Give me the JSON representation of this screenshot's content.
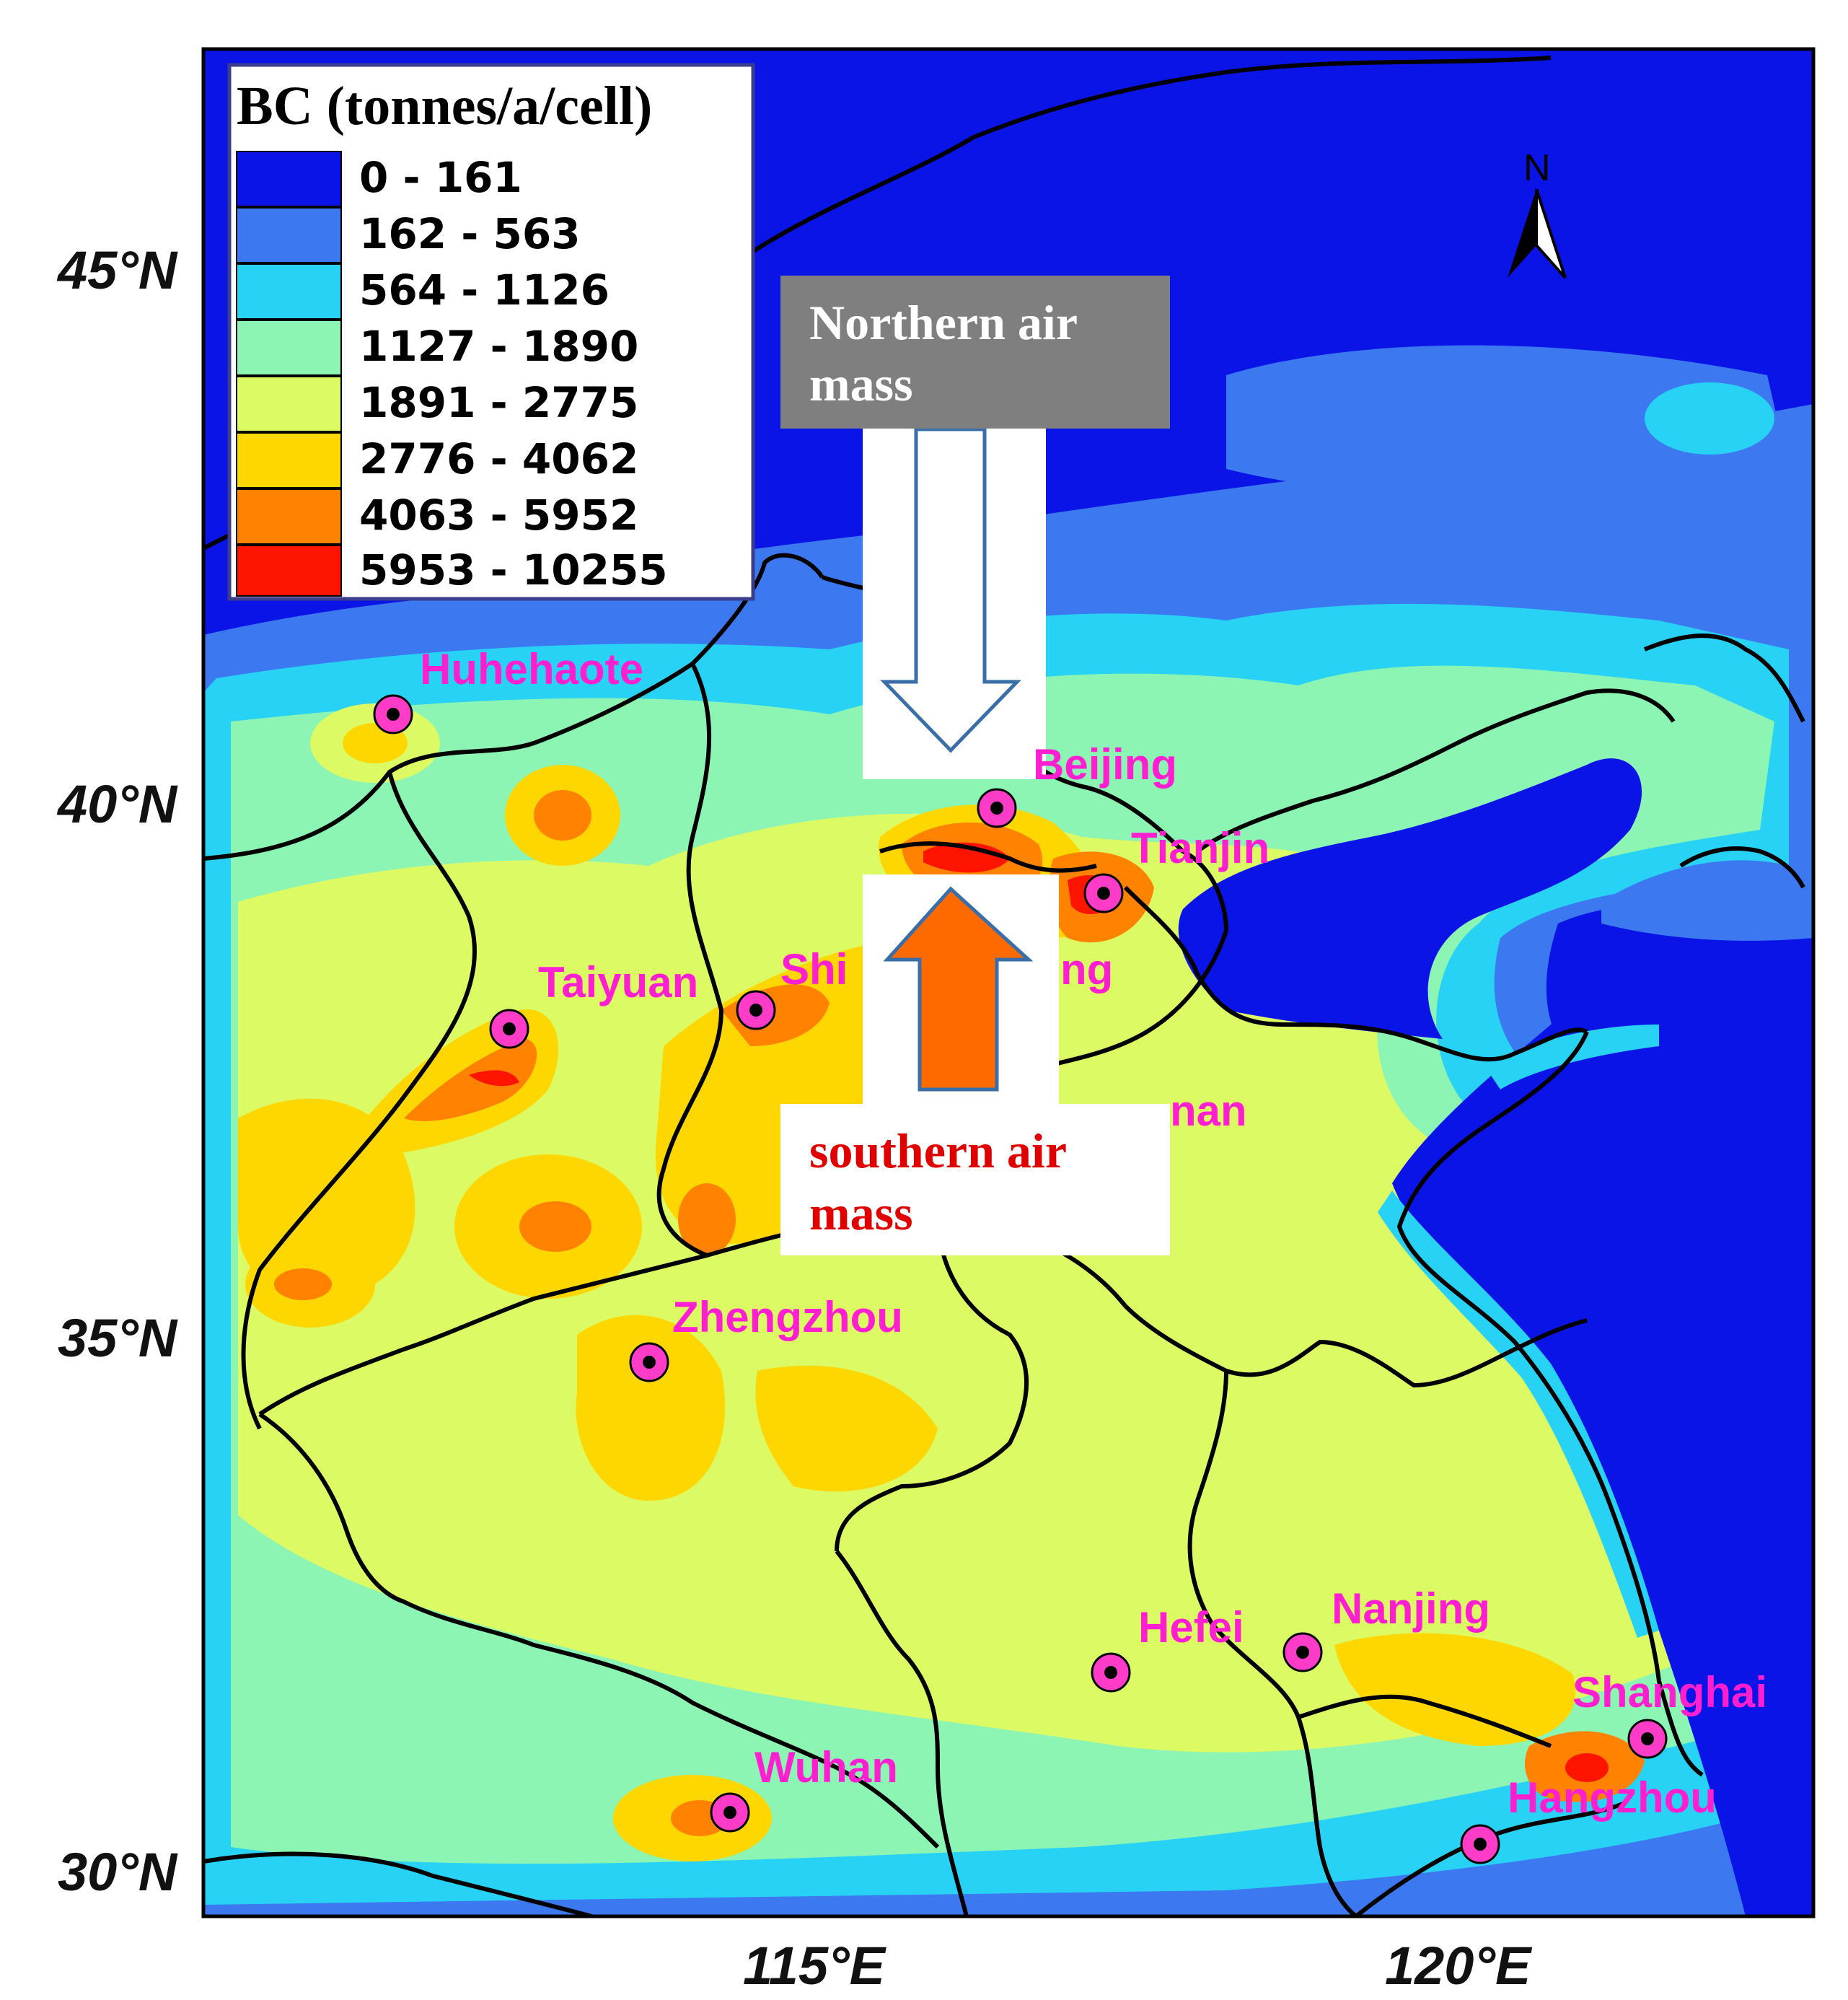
{
  "legend": {
    "title": "BC (tonnes/a/cell)",
    "classes": [
      {
        "label": "0 - 161",
        "color": "#0a14e6"
      },
      {
        "label": "162 - 563",
        "color": "#3c78f0"
      },
      {
        "label": "564 - 1126",
        "color": "#28d2f5"
      },
      {
        "label": "1127 - 1890",
        "color": "#8cf5b4"
      },
      {
        "label": "1891 - 2775",
        "color": "#dcfa64"
      },
      {
        "label": "2776 - 4062",
        "color": "#ffd700"
      },
      {
        "label": "4063 - 5952",
        "color": "#ff8200"
      },
      {
        "label": "5953 - 10255",
        "color": "#ff1400"
      }
    ]
  },
  "axes": {
    "latitude_ticks": [
      "45°N",
      "40°N",
      "35°N",
      "30°N"
    ],
    "longitude_ticks": [
      "115°E",
      "120°E"
    ]
  },
  "north_arrow": {
    "label": "N"
  },
  "annotations": {
    "northern": {
      "line1": "Northern air",
      "line2": "mass",
      "box_color": "#7f7f7f",
      "arrow_color": "#ffffff"
    },
    "southern": {
      "line1": "southern air",
      "line2": "mass",
      "text_color": "#e00000",
      "arrow_color": "#ff6a00"
    }
  },
  "cities": [
    {
      "name": "Huhehaote"
    },
    {
      "name": "Beijing"
    },
    {
      "name": "Tianjin"
    },
    {
      "name": "Taiyuan"
    },
    {
      "name": "Shijiazhuang",
      "shown": "Shi"
    },
    {
      "name": "Jinan",
      "shown": "nan"
    },
    {
      "name": "Zhengzhou"
    },
    {
      "name": "Hefei"
    },
    {
      "name": "Nanjing"
    },
    {
      "name": "Shanghai"
    },
    {
      "name": "Wuhan"
    },
    {
      "name": "Hangzhou"
    }
  ],
  "marker_colors": {
    "outer": "#ff3cc8",
    "inner": "#000000"
  }
}
